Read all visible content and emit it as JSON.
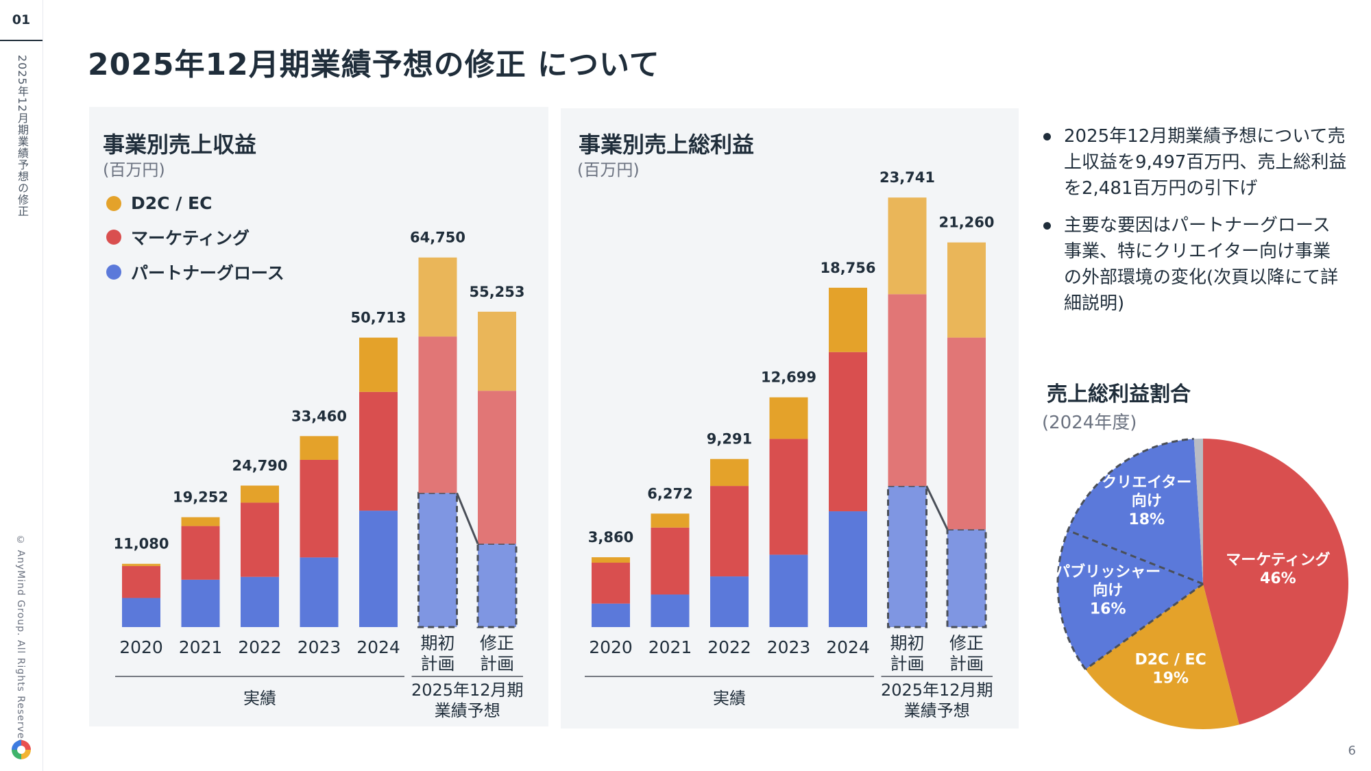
{
  "page": {
    "page_number_top": "01",
    "side_title": "2025年12月期業績予想の修正",
    "copyright": "© AnyMind Group. All Rights Reserved.",
    "title": "2025年12月期業績予想の修正 について",
    "slide_number": "6"
  },
  "legend": [
    {
      "label": "D2C / EC",
      "color": "#E4A22A"
    },
    {
      "label": "マーケティング",
      "color": "#D94F4F"
    },
    {
      "label": "パートナーグロース",
      "color": "#5B79DA"
    }
  ],
  "bullets": [
    "2025年12月期業績予想について売上収益を9,497百万円、売上総利益を2,481百万円の引下げ",
    "主要な要因はパートナーグロース事業、特にクリエイター向け事業の外部環境の変化(次頁以降にて詳細説明)"
  ],
  "chart_data": [
    {
      "type": "bar",
      "stacked": true,
      "title": "事業別売上収益",
      "unit": "(百万円)",
      "categories": [
        "2020",
        "2021",
        "2022",
        "2023",
        "2024",
        "期初\n計画",
        "修正\n計画"
      ],
      "totals": [
        11080,
        19252,
        24790,
        33460,
        50713,
        64750,
        55253
      ],
      "total_labels": [
        "11,080",
        "19,252",
        "24,790",
        "33,460",
        "50,713",
        "64,750",
        "55,253"
      ],
      "series": [
        {
          "name": "パートナーグロース",
          "values": [
            5100,
            8300,
            8800,
            12200,
            20400,
            23500,
            14600
          ]
        },
        {
          "name": "マーケティング",
          "values": [
            5600,
            9400,
            13000,
            17100,
            20800,
            27400,
            26800
          ]
        },
        {
          "name": "D2C / EC",
          "values": [
            380,
            1552,
            2990,
            4160,
            9513,
            13850,
            13853
          ]
        }
      ],
      "plan_style": "lighter fill for 2025 plan bars; dashed outline on partner growth segment",
      "groups": [
        {
          "label": "実績",
          "categories": [
            0,
            4
          ]
        },
        {
          "label": "2025年12月期\n業績予想",
          "categories": [
            5,
            6
          ]
        }
      ],
      "ylim": [
        0,
        70000
      ]
    },
    {
      "type": "bar",
      "stacked": true,
      "title": "事業別売上総利益",
      "unit": "(百万円)",
      "categories": [
        "2020",
        "2021",
        "2022",
        "2023",
        "2024",
        "期初\n計画",
        "修正\n計画"
      ],
      "totals": [
        3860,
        6272,
        9291,
        12699,
        18756,
        23741,
        21260
      ],
      "total_labels": [
        "3,860",
        "6,272",
        "9,291",
        "12,699",
        "18,756",
        "23,741",
        "21,260"
      ],
      "series": [
        {
          "name": "パートナーグロース",
          "values": [
            1300,
            1800,
            2800,
            4000,
            6400,
            7800,
            5400
          ]
        },
        {
          "name": "マーケティング",
          "values": [
            2260,
            3700,
            5000,
            6400,
            8800,
            10600,
            10600
          ]
        },
        {
          "name": "D2C / EC",
          "values": [
            300,
            772,
            1491,
            2299,
            3556,
            5341,
            5260
          ]
        }
      ],
      "plan_style": "lighter fill for 2025 plan bars; dashed outline on partner growth segment",
      "groups": [
        {
          "label": "実績",
          "categories": [
            0,
            4
          ]
        },
        {
          "label": "2025年12月期\n業績予想",
          "categories": [
            5,
            6
          ]
        }
      ],
      "ylim": [
        0,
        25000
      ]
    },
    {
      "type": "pie",
      "title": "売上総利益割合",
      "unit": "(2024年度)",
      "slices": [
        {
          "label": "マーケティング",
          "pct_label": "46%",
          "value": 46,
          "color": "#D94F4F",
          "text_color": "#ffffff"
        },
        {
          "label": "D2C / EC",
          "pct_label": "19%",
          "value": 19,
          "color": "#E4A22A",
          "text_color": "#ffffff"
        },
        {
          "label": "パブリッシャー\n向け",
          "pct_label": "16%",
          "value": 16,
          "color": "#5B79DA",
          "text_color": "#ffffff"
        },
        {
          "label": "クリエイター\n向け",
          "pct_label": "18%",
          "value": 18,
          "color": "#5B79DA",
          "text_color": "#ffffff"
        },
        {
          "label": "",
          "pct_label": "",
          "value": 1,
          "color": "#B8BCC4",
          "text_color": "#ffffff"
        }
      ],
      "dashed_separators": true
    }
  ]
}
